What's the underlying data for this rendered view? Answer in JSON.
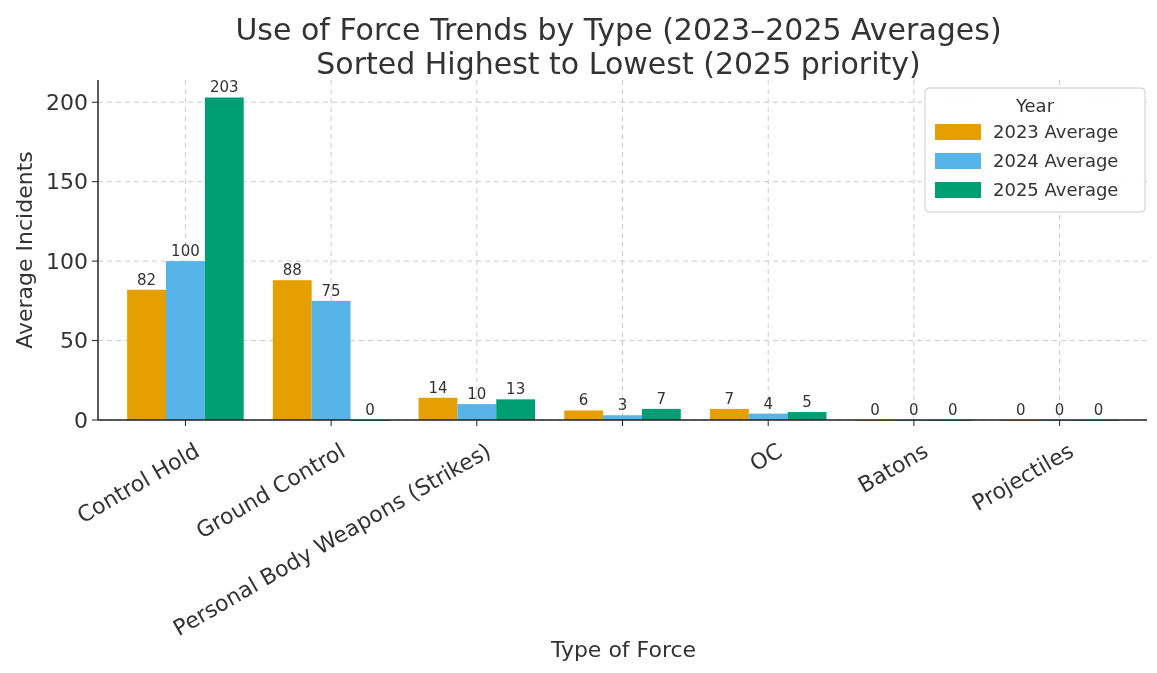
{
  "chart_data": {
    "type": "bar",
    "title": "Use of Force Trends by Type (2023–2025 Averages)",
    "subtitle": "Sorted Highest to Lowest (2025 priority)",
    "xlabel": "Type of Force",
    "ylabel": "Average Incidents",
    "legend_title": "Year",
    "categories": [
      "Control Hold",
      "Ground Control",
      "Personal Body Weapons (Strikes)",
      null,
      "OC",
      "Batons",
      "Projectiles"
    ],
    "series": [
      {
        "name": "2023 Average",
        "color": "#e69f00",
        "values": [
          82,
          88,
          14,
          6,
          7,
          0,
          0
        ]
      },
      {
        "name": "2024 Average",
        "color": "#56b4e9",
        "values": [
          100,
          75,
          10,
          3,
          4,
          0,
          0
        ]
      },
      {
        "name": "2025 Average",
        "color": "#009e73",
        "values": [
          203,
          0,
          13,
          7,
          5,
          0,
          0
        ]
      }
    ],
    "ylim": [
      0,
      214
    ],
    "yticks": [
      0,
      50,
      100,
      150,
      200
    ],
    "grid": true,
    "legend": "top right",
    "data_labels": true
  }
}
